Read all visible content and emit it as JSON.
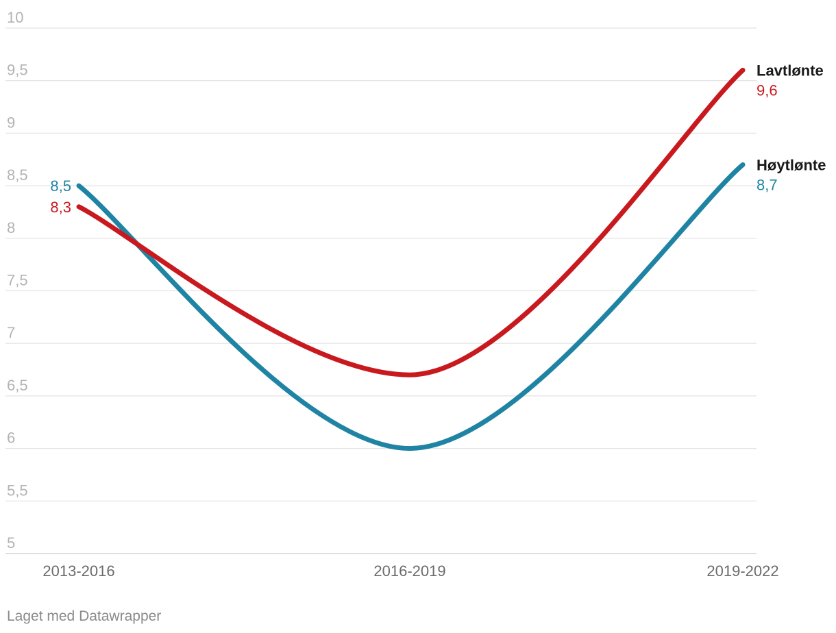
{
  "chart_data": {
    "type": "line",
    "title": "",
    "xlabel": "",
    "ylabel": "",
    "categories": [
      "2013-2016",
      "2016-2019",
      "2019-2022"
    ],
    "ylim": [
      5,
      10
    ],
    "y_ticks": [
      5,
      5.5,
      6,
      6.5,
      7,
      7.5,
      8,
      8.5,
      9,
      9.5,
      10
    ],
    "y_tick_labels": [
      "5",
      "5,5",
      "6",
      "6,5",
      "7",
      "7,5",
      "8",
      "8,5",
      "9",
      "9,5",
      "10"
    ],
    "grid": true,
    "legend": "none (series named by end labels)",
    "series": [
      {
        "name": "Lavtlønte",
        "values": [
          8.3,
          6.7,
          9.6
        ],
        "start_label": "8,3",
        "end_label": "9,6",
        "color": "#c8191f"
      },
      {
        "name": "Høytlønte",
        "values": [
          8.5,
          6.0,
          8.7
        ],
        "start_label": "8,5",
        "end_label": "8,7",
        "color": "#1f84a3"
      }
    ]
  },
  "footer": {
    "credit": "Laget med Datawrapper"
  }
}
